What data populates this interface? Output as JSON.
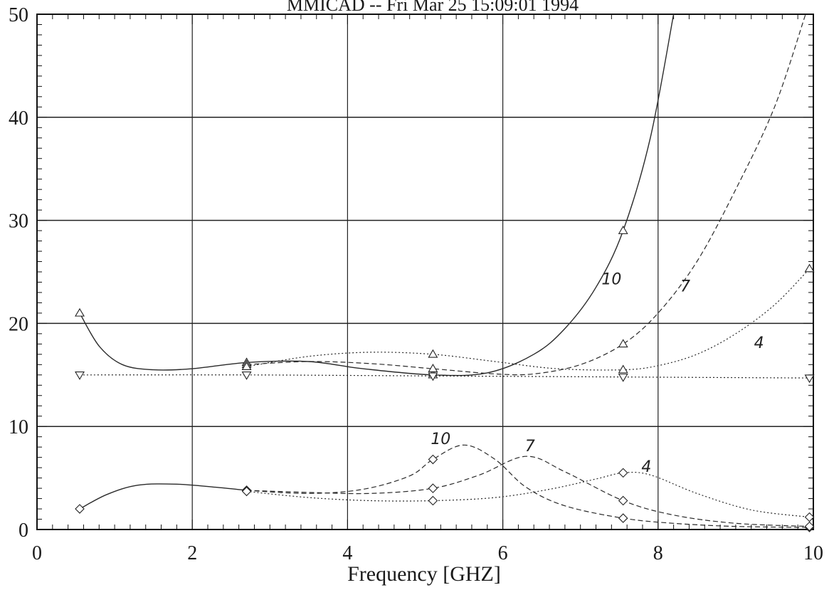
{
  "chart_data": {
    "type": "line",
    "title": "MMICAD -- Fri Mar 25 15:09:01 1994",
    "xlabel": "Frequency [GHZ]",
    "ylabel": "",
    "xlim": [
      0,
      10
    ],
    "ylim": [
      0,
      50
    ],
    "x_ticks": [
      "0",
      "2",
      "4",
      "6",
      "8",
      "10"
    ],
    "y_ticks": [
      "0",
      "10",
      "20",
      "30",
      "40",
      "50"
    ],
    "grid": true,
    "legend": "none",
    "series": [
      {
        "group": "upper",
        "marker": "triangle-up",
        "style": "solid",
        "x": [
          0.55,
          0.8,
          1.1,
          1.5,
          2.0,
          2.7,
          3.5,
          4.2,
          5.1,
          5.8,
          6.4,
          6.8,
          7.2,
          7.55,
          7.9,
          8.2
        ],
        "y": [
          21,
          17.8,
          16,
          15.5,
          15.6,
          16.2,
          16.3,
          15.6,
          15,
          15.2,
          17,
          19.5,
          23.5,
          29,
          38,
          50
        ]
      },
      {
        "group": "upper",
        "marker": "triangle-up",
        "style": "dashed",
        "x": [
          2.7,
          3.5,
          4.3,
          5.1,
          5.9,
          6.4,
          7.0,
          7.55,
          8.0,
          8.5,
          9.0,
          9.5,
          9.9
        ],
        "y": [
          16,
          16.3,
          16.1,
          15.6,
          15.1,
          15.1,
          16,
          18,
          21,
          26,
          33,
          41,
          50
        ]
      },
      {
        "group": "upper",
        "marker": "triangle-up",
        "style": "dotted",
        "x": [
          2.7,
          3.5,
          4.3,
          5.1,
          5.9,
          6.7,
          7.55,
          8.0,
          8.5,
          9.0,
          9.5,
          9.95
        ],
        "y": [
          15.8,
          16.8,
          17.2,
          17,
          16.3,
          15.6,
          15.5,
          15.9,
          17,
          19,
          21.8,
          25.3
        ]
      },
      {
        "group": "upper",
        "marker": "triangle-down",
        "style": "dotted",
        "x": [
          0.55,
          2.7,
          5.1,
          7.55,
          9.95
        ],
        "y": [
          15,
          15,
          14.9,
          14.8,
          14.7
        ]
      },
      {
        "group": "lower",
        "marker": "diamond",
        "style": "solid",
        "x": [
          0.55,
          0.9,
          1.3,
          1.8,
          2.3,
          2.7
        ],
        "y": [
          2,
          3.4,
          4.3,
          4.4,
          4.1,
          3.8
        ]
      },
      {
        "group": "lower",
        "marker": "diamond",
        "style": "dashed",
        "x": [
          2.7,
          3.5,
          4.2,
          4.8,
          5.1,
          5.5,
          5.9,
          6.3,
          6.8,
          7.55,
          8.2,
          9.0,
          9.95
        ],
        "y": [
          3.8,
          3.5,
          3.9,
          5.2,
          6.8,
          8.2,
          6.8,
          4.1,
          2.3,
          1.1,
          0.6,
          0.3,
          0.2
        ]
      },
      {
        "group": "lower",
        "marker": "diamond",
        "style": "dashed",
        "x": [
          2.7,
          3.5,
          4.3,
          5.1,
          5.7,
          6.3,
          6.8,
          7.55,
          8.2,
          9.0,
          9.95
        ],
        "y": [
          3.8,
          3.6,
          3.5,
          4.0,
          5.3,
          7.1,
          5.6,
          2.8,
          1.4,
          0.6,
          0.3
        ]
      },
      {
        "group": "lower",
        "marker": "diamond",
        "style": "dotted",
        "x": [
          2.7,
          3.5,
          4.3,
          5.1,
          5.9,
          6.6,
          7.2,
          7.55,
          7.9,
          8.5,
          9.2,
          9.95
        ],
        "y": [
          3.7,
          3.1,
          2.8,
          2.8,
          3.1,
          3.9,
          4.9,
          5.5,
          5.3,
          3.5,
          1.9,
          1.2
        ]
      }
    ],
    "annotations": [
      {
        "text": "10",
        "x": 7.4,
        "y": 23.8
      },
      {
        "text": "7",
        "x": 8.35,
        "y": 23.1
      },
      {
        "text": "4",
        "x": 9.3,
        "y": 17.6
      },
      {
        "text": "10",
        "x": 5.2,
        "y": 8.3
      },
      {
        "text": "7",
        "x": 6.35,
        "y": 7.6
      },
      {
        "text": "4",
        "x": 7.85,
        "y": 5.6
      }
    ]
  }
}
